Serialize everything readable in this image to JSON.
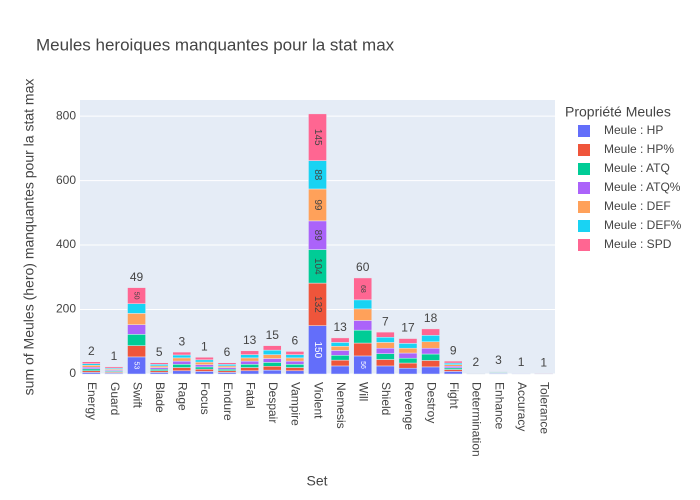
{
  "chart_data": {
    "type": "bar",
    "stacked": true,
    "title": "Meules heroiques manquantes pour la stat max",
    "x_label": "Set",
    "y_label": "sum of Meules (hero) manquantes pour la stat max",
    "legend_title": "Propriété Meules",
    "categories": [
      "Energy",
      "Guard",
      "Swift",
      "Blade",
      "Rage",
      "Focus",
      "Endure",
      "Fatal",
      "Despair",
      "Vampire",
      "Violent",
      "Nemesis",
      "Will",
      "Shield",
      "Revenge",
      "Destroy",
      "Fight",
      "Determination",
      "Enhance",
      "Accuracy",
      "Tolerance"
    ],
    "top_labels": [
      2,
      1,
      49,
      5,
      3,
      1,
      6,
      13,
      15,
      6,
      null,
      13,
      60,
      7,
      17,
      18,
      9,
      2,
      3,
      1,
      1
    ],
    "series": [
      {
        "name": "Meule : HP",
        "color": "#636efa",
        "values": [
          5,
          3,
          53,
          5,
          10,
          8,
          5,
          10,
          12,
          10,
          150,
          25,
          56,
          25,
          18,
          22,
          8,
          1,
          2,
          0,
          0
        ]
      },
      {
        "name": "Meule : HP%",
        "color": "#ef553b",
        "values": [
          5,
          3,
          35,
          5,
          10,
          7,
          5,
          10,
          12,
          10,
          132,
          18,
          40,
          20,
          16,
          20,
          6,
          1,
          1,
          1,
          0
        ]
      },
      {
        "name": "Meule : ATQ",
        "color": "#00cc96",
        "values": [
          6,
          3,
          35,
          5,
          10,
          7,
          5,
          10,
          12,
          10,
          104,
          15,
          40,
          18,
          15,
          20,
          5,
          0,
          2,
          0,
          0
        ]
      },
      {
        "name": "Meule : ATQ%",
        "color": "#ab63fa",
        "values": [
          5,
          3,
          30,
          5,
          10,
          7,
          5,
          10,
          12,
          10,
          89,
          15,
          30,
          17,
          16,
          18,
          5,
          0,
          1,
          1,
          1
        ]
      },
      {
        "name": "Meule : DEF",
        "color": "#ffa15a",
        "values": [
          6,
          3,
          35,
          5,
          10,
          8,
          5,
          10,
          12,
          10,
          99,
          13,
          36,
          18,
          15,
          20,
          5,
          1,
          1,
          0,
          0
        ]
      },
      {
        "name": "Meule : DEF%",
        "color": "#19d3f3",
        "values": [
          5,
          3,
          30,
          5,
          9,
          7,
          5,
          10,
          14,
          10,
          88,
          12,
          28,
          16,
          15,
          20,
          5,
          1,
          2,
          1,
          0
        ]
      },
      {
        "name": "Meule : SPD",
        "color": "#ff6692",
        "values": [
          6,
          4,
          50,
          5,
          9,
          8,
          5,
          12,
          14,
          10,
          145,
          14,
          68,
          16,
          15,
          20,
          6,
          0,
          1,
          0,
          1
        ]
      }
    ],
    "ylim": [
      0,
      850
    ],
    "yticks": [
      0,
      200,
      400,
      600,
      800
    ],
    "grid": true
  }
}
